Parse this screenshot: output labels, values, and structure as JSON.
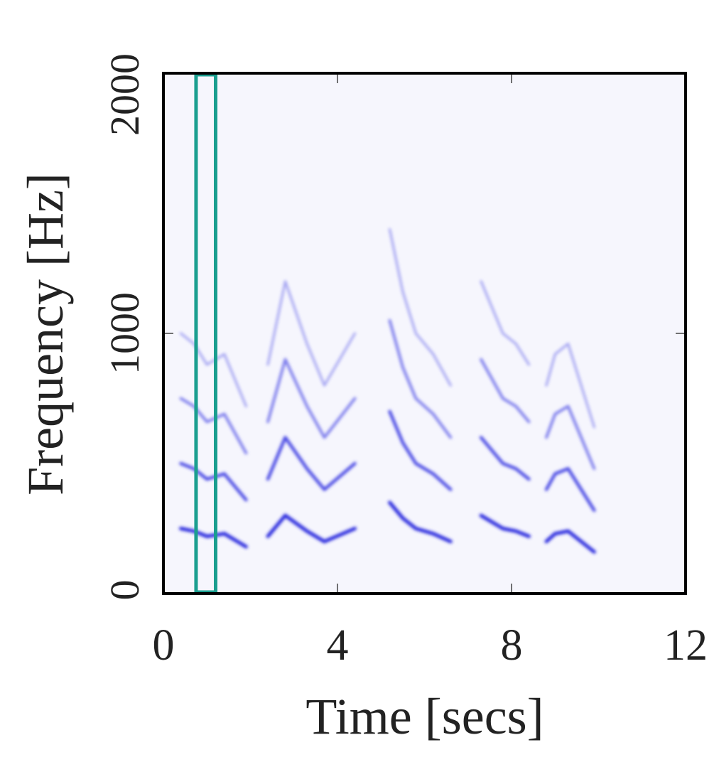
{
  "chart_data": {
    "type": "spectrogram",
    "x_label": "Time [secs]",
    "y_label": "Frequency [Hz]",
    "xlim": [
      0,
      12
    ],
    "ylim": [
      0,
      2000
    ],
    "xticks": [
      0,
      4,
      8,
      12
    ],
    "yticks": [
      0,
      1000,
      2000
    ],
    "background": "#f6f6fd",
    "x": [
      0.4,
      0.7,
      1.0,
      1.4,
      1.9,
      2.1,
      2.4,
      2.8,
      3.3,
      3.7,
      4.4,
      4.8,
      5.2,
      5.5,
      5.8,
      6.2,
      6.6,
      7.0,
      7.3,
      7.6,
      7.8,
      8.1,
      8.4,
      8.6,
      8.8,
      9.0,
      9.3,
      9.6,
      9.9
    ],
    "series": [
      {
        "color": "#2a2ade",
        "values": [
          250,
          240,
          220,
          230,
          180,
          null,
          220,
          300,
          240,
          200,
          250,
          null,
          350,
          290,
          250,
          230,
          200,
          null,
          300,
          270,
          250,
          240,
          220,
          null,
          200,
          230,
          240,
          200,
          160
        ]
      },
      {
        "color": "#4a4ae4",
        "values": [
          500,
          480,
          440,
          460,
          360,
          null,
          440,
          600,
          480,
          400,
          500,
          null,
          700,
          580,
          500,
          460,
          400,
          null,
          600,
          540,
          500,
          480,
          440,
          null,
          400,
          460,
          480,
          400,
          320
        ]
      },
      {
        "color": "#7a7aec",
        "values": [
          750,
          720,
          660,
          690,
          540,
          null,
          660,
          900,
          720,
          600,
          750,
          null,
          1050,
          870,
          750,
          690,
          600,
          null,
          900,
          810,
          750,
          720,
          660,
          null,
          600,
          690,
          720,
          600,
          480
        ]
      },
      {
        "color": "#a4a4f2",
        "values": [
          1000,
          960,
          880,
          920,
          720,
          null,
          880,
          1200,
          960,
          800,
          1000,
          null,
          1400,
          1160,
          1000,
          920,
          800,
          null,
          1200,
          1080,
          1000,
          960,
          880,
          null,
          800,
          920,
          960,
          800,
          640
        ]
      }
    ],
    "highlight": {
      "xlim": [
        0.75,
        1.2
      ],
      "color": "#1a9e8f"
    }
  }
}
